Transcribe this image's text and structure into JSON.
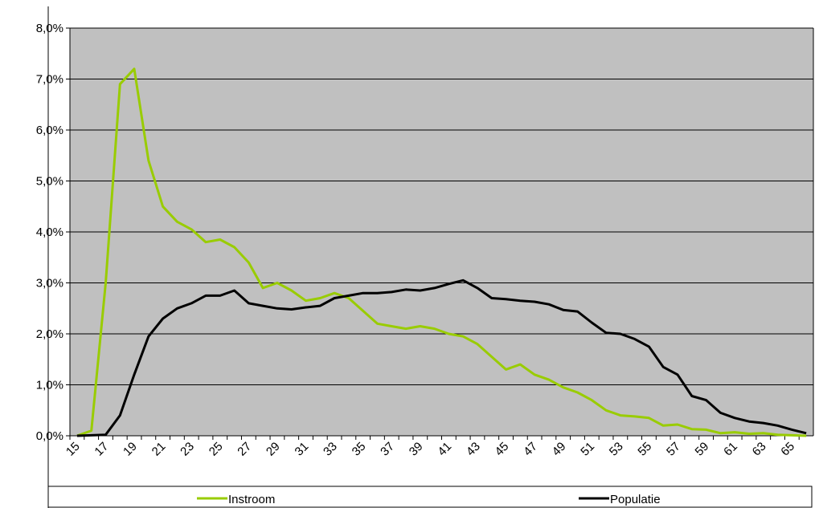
{
  "chart_data": {
    "type": "line",
    "categories": [
      "15",
      null,
      "17",
      null,
      "19",
      null,
      "21",
      null,
      "23",
      null,
      "25",
      null,
      "27",
      null,
      "29",
      null,
      "31",
      null,
      "33",
      null,
      "35",
      null,
      "37",
      null,
      "39",
      null,
      "41",
      null,
      "43",
      null,
      "45",
      null,
      "47",
      null,
      "49",
      null,
      "51",
      null,
      "53",
      null,
      "55",
      null,
      "57",
      null,
      "59",
      null,
      "61",
      null,
      "63",
      null,
      "65",
      null
    ],
    "series": [
      {
        "name": "Instroom",
        "color": "#99cc00",
        "values": [
          0.0,
          0.1,
          3.0,
          6.9,
          7.2,
          5.4,
          4.5,
          4.2,
          4.05,
          3.8,
          3.85,
          3.7,
          3.4,
          2.9,
          3.0,
          2.85,
          2.65,
          2.7,
          2.8,
          2.7,
          2.45,
          2.2,
          2.15,
          2.1,
          2.15,
          2.1,
          2.0,
          1.95,
          1.8,
          1.55,
          1.3,
          1.4,
          1.2,
          1.1,
          0.95,
          0.85,
          0.7,
          0.5,
          0.4,
          0.38,
          0.35,
          0.2,
          0.22,
          0.13,
          0.12,
          0.05,
          0.07,
          0.04,
          0.05,
          0.02,
          0.01,
          0.0
        ]
      },
      {
        "name": "Populatie",
        "color": "#000000",
        "values": [
          0.0,
          0.01,
          0.02,
          0.4,
          1.2,
          1.95,
          2.3,
          2.5,
          2.6,
          2.75,
          2.75,
          2.85,
          2.6,
          2.55,
          2.5,
          2.48,
          2.52,
          2.55,
          2.7,
          2.75,
          2.8,
          2.8,
          2.82,
          2.87,
          2.85,
          2.9,
          2.98,
          3.05,
          2.9,
          2.7,
          2.68,
          2.65,
          2.63,
          2.58,
          2.47,
          2.44,
          2.22,
          2.02,
          2.0,
          1.9,
          1.75,
          1.35,
          1.2,
          0.78,
          0.7,
          0.45,
          0.35,
          0.28,
          0.25,
          0.2,
          0.12,
          0.05
        ]
      }
    ],
    "ylim": [
      0,
      8
    ],
    "yticks": [
      {
        "value": 0,
        "label": "0,0%"
      },
      {
        "value": 1,
        "label": "1,0%"
      },
      {
        "value": 2,
        "label": "2,0%"
      },
      {
        "value": 3,
        "label": "3,0%"
      },
      {
        "value": 4,
        "label": "4,0%"
      },
      {
        "value": 5,
        "label": "5,0%"
      },
      {
        "value": 6,
        "label": "6,0%"
      },
      {
        "value": 7,
        "label": "7,0%"
      },
      {
        "value": 8,
        "label": "8,0%"
      }
    ],
    "grid": true,
    "plot_background": "#c0c0c0",
    "legend": "bottom"
  }
}
